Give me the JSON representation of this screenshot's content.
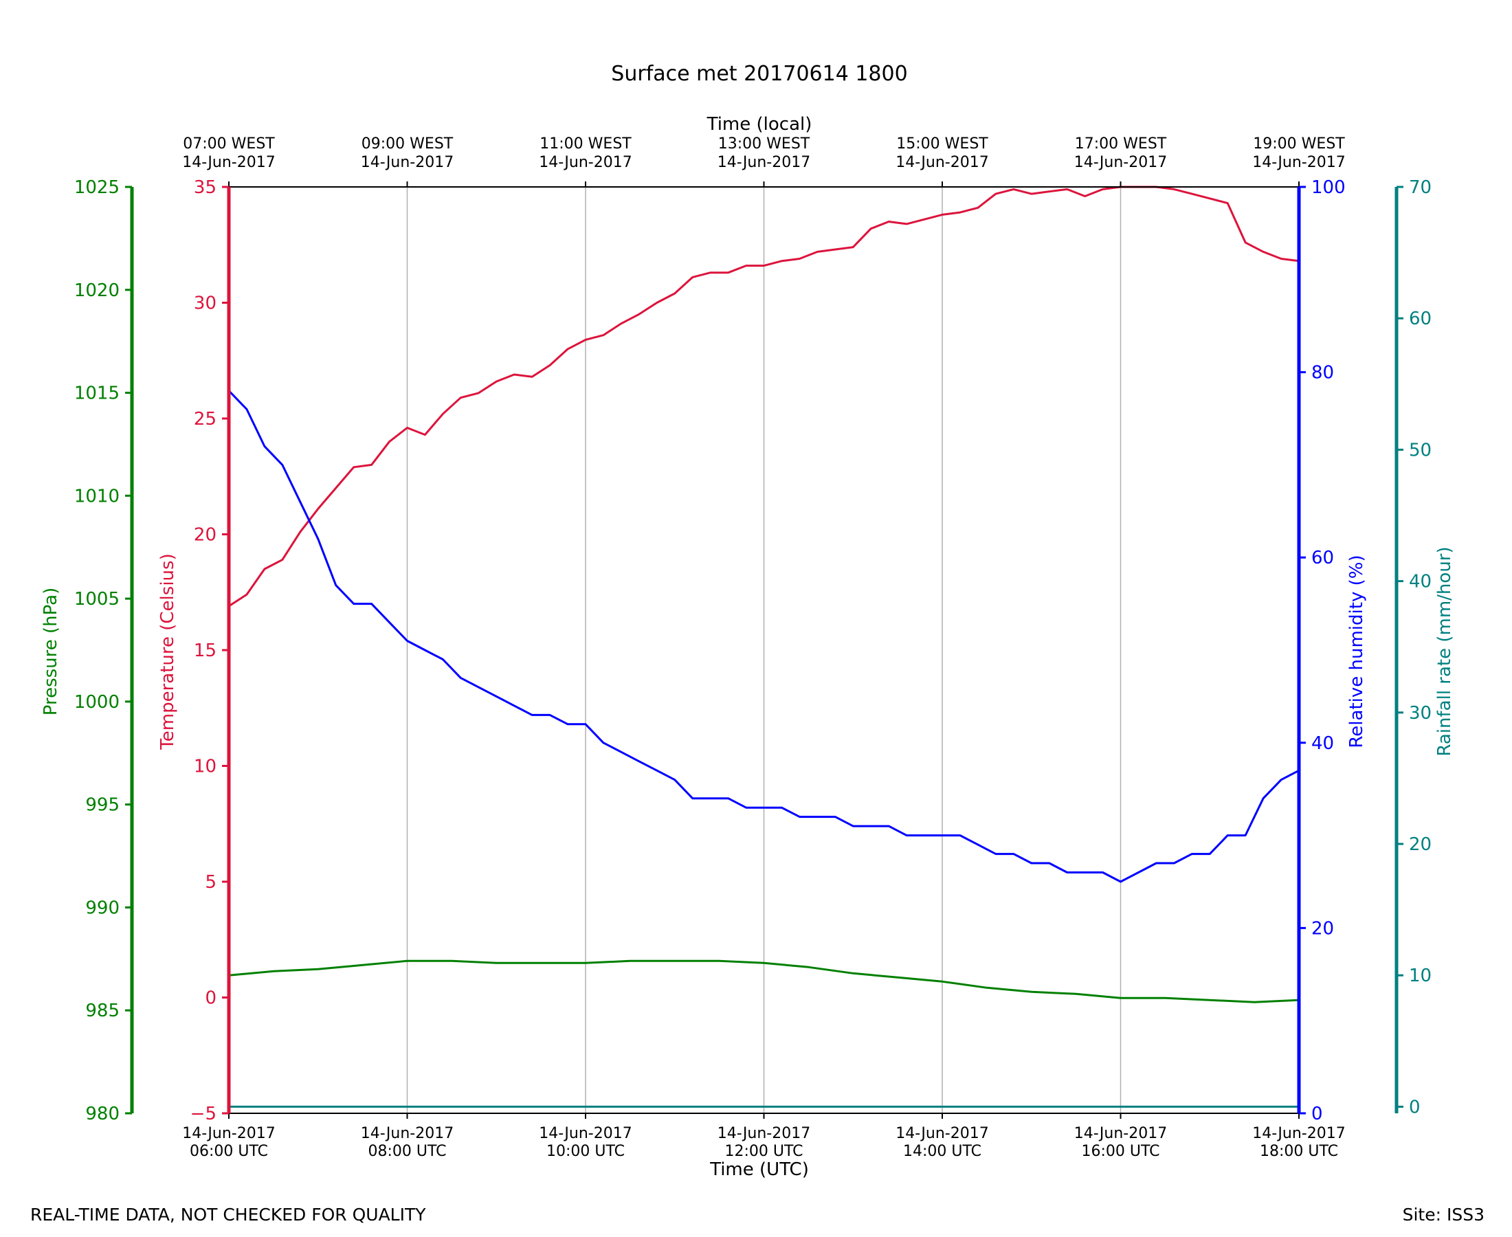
{
  "chart_data": {
    "type": "line",
    "title": "Surface met 20170614 1800",
    "footer_left": "REAL-TIME DATA, NOT CHECKED FOR QUALITY",
    "footer_right": "Site: ISS3",
    "xlabel_bottom": "Time (UTC)",
    "xlabel_top": "Time (local)",
    "x_hours_range": [
      6,
      18
    ],
    "grid": "vertical",
    "x_ticks_bottom": [
      {
        "hour": 6,
        "line1": "14-Jun-2017",
        "line2": "06:00 UTC"
      },
      {
        "hour": 8,
        "line1": "14-Jun-2017",
        "line2": "08:00 UTC"
      },
      {
        "hour": 10,
        "line1": "14-Jun-2017",
        "line2": "10:00 UTC"
      },
      {
        "hour": 12,
        "line1": "14-Jun-2017",
        "line2": "12:00 UTC"
      },
      {
        "hour": 14,
        "line1": "14-Jun-2017",
        "line2": "14:00 UTC"
      },
      {
        "hour": 16,
        "line1": "14-Jun-2017",
        "line2": "16:00 UTC"
      },
      {
        "hour": 18,
        "line1": "14-Jun-2017",
        "line2": "18:00 UTC"
      }
    ],
    "x_ticks_top": [
      {
        "hour": 6,
        "line1": "07:00 WEST",
        "line2": "14-Jun-2017"
      },
      {
        "hour": 8,
        "line1": "09:00 WEST",
        "line2": "14-Jun-2017"
      },
      {
        "hour": 10,
        "line1": "11:00 WEST",
        "line2": "14-Jun-2017"
      },
      {
        "hour": 12,
        "line1": "13:00 WEST",
        "line2": "14-Jun-2017"
      },
      {
        "hour": 14,
        "line1": "15:00 WEST",
        "line2": "14-Jun-2017"
      },
      {
        "hour": 16,
        "line1": "17:00 WEST",
        "line2": "14-Jun-2017"
      },
      {
        "hour": 18,
        "line1": "19:00 WEST",
        "line2": "14-Jun-2017"
      }
    ],
    "axes": {
      "pressure": {
        "label": "Pressure (hPa)",
        "color": "#008000",
        "range": [
          980,
          1025
        ],
        "ticks": [
          "980",
          "985",
          "990",
          "995",
          "1000",
          "1005",
          "1010",
          "1015",
          "1020",
          "1025"
        ]
      },
      "temperature": {
        "label": "Temperature (Celsius)",
        "color": "#dc143c",
        "range": [
          -5,
          35
        ],
        "ticks": [
          "−5",
          "0",
          "5",
          "10",
          "15",
          "20",
          "25",
          "30",
          "35"
        ]
      },
      "humidity": {
        "label": "Relative humidity (%)",
        "color": "#0000ff",
        "range": [
          0,
          100
        ],
        "ticks": [
          "0",
          "20",
          "40",
          "60",
          "80",
          "100"
        ]
      },
      "rainfall": {
        "label": "Rainfall rate (mm/hour)",
        "color": "#008080",
        "range": [
          -0.5,
          70
        ],
        "ticks": [
          "0",
          "10",
          "20",
          "30",
          "40",
          "50",
          "60",
          "70"
        ]
      }
    },
    "series": [
      {
        "key": "temperature",
        "x": [
          6.0,
          6.2,
          6.4,
          6.6,
          6.8,
          7.0,
          7.2,
          7.4,
          7.6,
          7.8,
          8.0,
          8.2,
          8.4,
          8.6,
          8.8,
          9.0,
          9.2,
          9.4,
          9.6,
          9.8,
          10.0,
          10.2,
          10.4,
          10.6,
          10.8,
          11.0,
          11.2,
          11.4,
          11.6,
          11.8,
          12.0,
          12.2,
          12.4,
          12.6,
          12.8,
          13.0,
          13.2,
          13.4,
          13.6,
          13.8,
          14.0,
          14.2,
          14.4,
          14.6,
          14.8,
          15.0,
          15.2,
          15.4,
          15.6,
          15.8,
          16.0,
          16.2,
          16.4,
          16.6,
          16.8,
          17.0,
          17.2,
          17.4,
          17.6,
          17.8,
          18.0
        ],
        "values": [
          16.9,
          17.4,
          18.5,
          18.9,
          20.1,
          21.1,
          22.0,
          22.9,
          23.0,
          24.0,
          24.6,
          24.3,
          25.2,
          25.9,
          26.1,
          26.6,
          26.9,
          26.8,
          27.3,
          28.0,
          28.4,
          28.6,
          29.1,
          29.5,
          30.0,
          30.4,
          31.1,
          31.3,
          31.3,
          31.6,
          31.6,
          31.8,
          31.9,
          32.2,
          32.3,
          32.4,
          33.2,
          33.5,
          33.4,
          33.6,
          33.8,
          33.9,
          34.1,
          34.7,
          34.9,
          34.7,
          34.8,
          34.9,
          34.6,
          34.9,
          35.0,
          35.0,
          35.0,
          34.9,
          34.7,
          34.5,
          34.3,
          32.6,
          32.2,
          31.9,
          31.8
        ]
      },
      {
        "key": "humidity",
        "x": [
          6.0,
          6.2,
          6.4,
          6.6,
          6.8,
          7.0,
          7.2,
          7.4,
          7.6,
          7.8,
          8.0,
          8.2,
          8.4,
          8.6,
          8.8,
          9.0,
          9.2,
          9.4,
          9.6,
          9.8,
          10.0,
          10.2,
          10.4,
          10.6,
          10.8,
          11.0,
          11.2,
          11.4,
          11.6,
          11.8,
          12.0,
          12.2,
          12.4,
          12.6,
          12.8,
          13.0,
          13.2,
          13.4,
          13.6,
          13.8,
          14.0,
          14.2,
          14.4,
          14.6,
          14.8,
          15.0,
          15.2,
          15.4,
          15.6,
          15.8,
          16.0,
          16.2,
          16.4,
          16.6,
          16.8,
          17.0,
          17.2,
          17.4,
          17.6,
          17.8,
          18.0
        ],
        "values": [
          78,
          76,
          72,
          70,
          66,
          62,
          57,
          55,
          55,
          53,
          51,
          50,
          49,
          47,
          46,
          45,
          44,
          43,
          43,
          42,
          42,
          40,
          39,
          38,
          37,
          36,
          34,
          34,
          34,
          33,
          33,
          33,
          32,
          32,
          32,
          31,
          31,
          31,
          30,
          30,
          30,
          30,
          29,
          28,
          28,
          27,
          27,
          26,
          26,
          26,
          25,
          26,
          27,
          27,
          28,
          28,
          30,
          30,
          34,
          36,
          37
        ]
      },
      {
        "key": "pressure",
        "x": [
          6.0,
          6.5,
          7.0,
          7.5,
          8.0,
          8.5,
          9.0,
          9.5,
          10.0,
          10.5,
          11.0,
          11.5,
          12.0,
          12.5,
          13.0,
          13.5,
          14.0,
          14.5,
          15.0,
          15.5,
          16.0,
          16.5,
          17.0,
          17.5,
          18.0
        ],
        "values": [
          986.7,
          986.9,
          987.0,
          987.2,
          987.4,
          987.4,
          987.3,
          987.3,
          987.3,
          987.4,
          987.4,
          987.4,
          987.3,
          987.1,
          986.8,
          986.6,
          986.4,
          986.1,
          985.9,
          985.8,
          985.6,
          985.6,
          985.5,
          985.4,
          985.5
        ]
      },
      {
        "key": "rainfall",
        "x": [
          6.0,
          18.0
        ],
        "values": [
          0,
          0
        ]
      }
    ]
  }
}
